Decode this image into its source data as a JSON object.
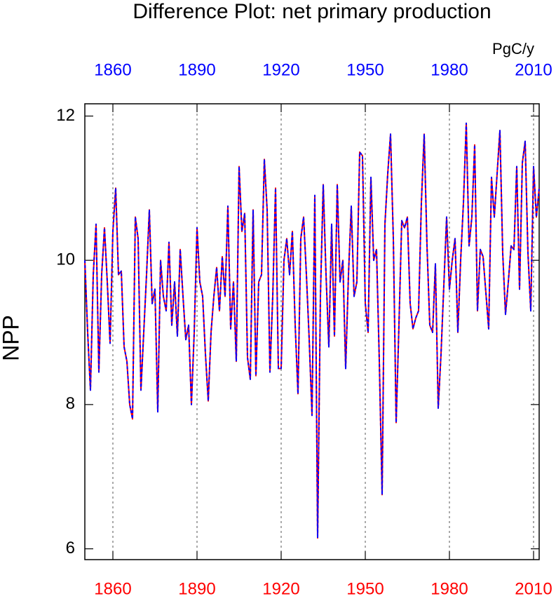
{
  "chart_data": {
    "type": "line",
    "title": "Difference Plot: net primary production",
    "units": "PgC/y",
    "y_label": "NPP",
    "x": [
      1850,
      1851,
      1852,
      1853,
      1854,
      1855,
      1856,
      1857,
      1858,
      1859,
      1860,
      1861,
      1862,
      1863,
      1864,
      1865,
      1866,
      1867,
      1868,
      1869,
      1870,
      1871,
      1872,
      1873,
      1874,
      1875,
      1876,
      1877,
      1878,
      1879,
      1880,
      1881,
      1882,
      1883,
      1884,
      1885,
      1886,
      1887,
      1888,
      1889,
      1890,
      1891,
      1892,
      1893,
      1894,
      1895,
      1896,
      1897,
      1898,
      1899,
      1900,
      1901,
      1902,
      1903,
      1904,
      1905,
      1906,
      1907,
      1908,
      1909,
      1910,
      1911,
      1912,
      1913,
      1914,
      1915,
      1916,
      1917,
      1918,
      1919,
      1920,
      1921,
      1922,
      1923,
      1924,
      1925,
      1926,
      1927,
      1928,
      1929,
      1930,
      1931,
      1932,
      1933,
      1934,
      1935,
      1936,
      1937,
      1938,
      1939,
      1940,
      1941,
      1942,
      1943,
      1944,
      1945,
      1946,
      1947,
      1948,
      1949,
      1950,
      1951,
      1952,
      1953,
      1954,
      1955,
      1956,
      1957,
      1958,
      1959,
      1960,
      1961,
      1962,
      1963,
      1964,
      1965,
      1966,
      1967,
      1968,
      1969,
      1970,
      1971,
      1972,
      1973,
      1974,
      1975,
      1976,
      1977,
      1978,
      1979,
      1980,
      1981,
      1982,
      1983,
      1984,
      1985,
      1986,
      1987,
      1988,
      1989,
      1990,
      1991,
      1992,
      1993,
      1994,
      1995,
      1996,
      1997,
      1998,
      1999,
      2000,
      2001,
      2002,
      2003,
      2004,
      2005,
      2006,
      2007,
      2008,
      2009,
      2010,
      2011,
      2012
    ],
    "series": [
      {
        "color": "red",
        "dashed": false,
        "values": [
          10.0,
          9.0,
          8.2,
          9.8,
          10.5,
          8.45,
          9.8,
          10.45,
          9.7,
          8.85,
          10.4,
          11.0,
          9.8,
          9.85,
          8.8,
          8.6,
          8.0,
          7.8,
          10.6,
          10.3,
          8.2,
          9.0,
          9.8,
          10.7,
          9.4,
          9.6,
          7.9,
          10.0,
          9.5,
          9.3,
          10.25,
          9.1,
          9.7,
          8.95,
          10.15,
          9.5,
          8.9,
          9.1,
          8.0,
          9.0,
          10.45,
          9.7,
          9.5,
          8.7,
          8.05,
          9.0,
          9.5,
          9.9,
          9.3,
          10.05,
          9.5,
          10.75,
          9.05,
          9.7,
          8.6,
          11.3,
          10.4,
          10.65,
          8.65,
          8.35,
          10.7,
          8.4,
          9.7,
          9.8,
          11.4,
          10.7,
          8.45,
          9.5,
          11.0,
          8.5,
          8.5,
          10.0,
          10.3,
          9.8,
          10.4,
          9.1,
          8.15,
          10.3,
          10.6,
          9.8,
          8.9,
          7.85,
          10.9,
          6.15,
          9.5,
          11.05,
          9.8,
          8.8,
          10.5,
          8.95,
          11.05,
          9.7,
          10.0,
          8.5,
          9.8,
          10.75,
          9.5,
          9.7,
          11.5,
          11.45,
          9.4,
          9.0,
          11.15,
          10.0,
          10.15,
          8.6,
          6.75,
          10.5,
          11.2,
          11.75,
          10.3,
          7.75,
          9.1,
          10.55,
          10.45,
          10.6,
          9.4,
          9.05,
          9.2,
          9.3,
          10.8,
          11.75,
          10.2,
          9.1,
          9.0,
          9.95,
          7.95,
          8.7,
          9.65,
          10.6,
          9.6,
          10.0,
          10.3,
          9.0,
          10.0,
          10.8,
          11.9,
          10.2,
          10.6,
          11.6,
          9.3,
          10.15,
          10.05,
          9.55,
          9.05,
          11.15,
          10.6,
          11.2,
          11.8,
          10.1,
          9.25,
          9.7,
          10.2,
          10.15,
          11.3,
          9.6,
          11.35,
          11.65,
          10.1,
          9.3,
          11.3,
          10.6,
          11.0
        ]
      },
      {
        "color": "blue",
        "dashed": true,
        "values": [
          10.0,
          9.0,
          8.2,
          9.8,
          10.5,
          8.45,
          9.8,
          10.45,
          9.7,
          8.85,
          10.4,
          11.0,
          9.8,
          9.85,
          8.8,
          8.6,
          8.0,
          7.8,
          10.6,
          10.3,
          8.2,
          9.0,
          9.8,
          10.7,
          9.4,
          9.6,
          7.9,
          10.0,
          9.5,
          9.3,
          10.25,
          9.1,
          9.7,
          8.95,
          10.15,
          9.5,
          8.9,
          9.1,
          8.0,
          9.0,
          10.45,
          9.7,
          9.5,
          8.7,
          8.05,
          9.0,
          9.5,
          9.9,
          9.3,
          10.05,
          9.5,
          10.75,
          9.05,
          9.7,
          8.6,
          11.3,
          10.4,
          10.65,
          8.65,
          8.35,
          10.7,
          8.4,
          9.7,
          9.8,
          11.4,
          10.7,
          8.45,
          9.5,
          11.0,
          8.5,
          8.5,
          10.0,
          10.3,
          9.8,
          10.4,
          9.1,
          8.15,
          10.3,
          10.6,
          9.8,
          8.9,
          7.85,
          10.9,
          6.15,
          9.5,
          11.05,
          9.8,
          8.8,
          10.5,
          8.95,
          11.05,
          9.7,
          10.0,
          8.5,
          9.8,
          10.75,
          9.5,
          9.7,
          11.5,
          11.45,
          9.4,
          9.0,
          11.15,
          10.0,
          10.15,
          8.6,
          6.75,
          10.5,
          11.2,
          11.75,
          10.3,
          7.75,
          9.1,
          10.55,
          10.45,
          10.6,
          9.4,
          9.05,
          9.2,
          9.3,
          10.8,
          11.75,
          10.2,
          9.1,
          9.0,
          9.95,
          7.95,
          8.7,
          9.65,
          10.6,
          9.6,
          10.0,
          10.3,
          9.0,
          10.0,
          10.8,
          11.9,
          10.2,
          10.6,
          11.6,
          9.3,
          10.15,
          10.05,
          9.55,
          9.05,
          11.15,
          10.6,
          11.2,
          11.8,
          10.1,
          9.25,
          9.7,
          10.2,
          10.15,
          11.3,
          9.6,
          11.35,
          11.65,
          10.1,
          9.3,
          11.3,
          10.6,
          11.0
        ]
      }
    ],
    "xlim": [
      1850,
      2012
    ],
    "xticks": [
      1860,
      1890,
      1920,
      1950,
      1980,
      2010
    ],
    "ylim": [
      5.85,
      12.17
    ],
    "yticks": [
      6,
      8,
      10,
      12
    ],
    "grid": true
  }
}
